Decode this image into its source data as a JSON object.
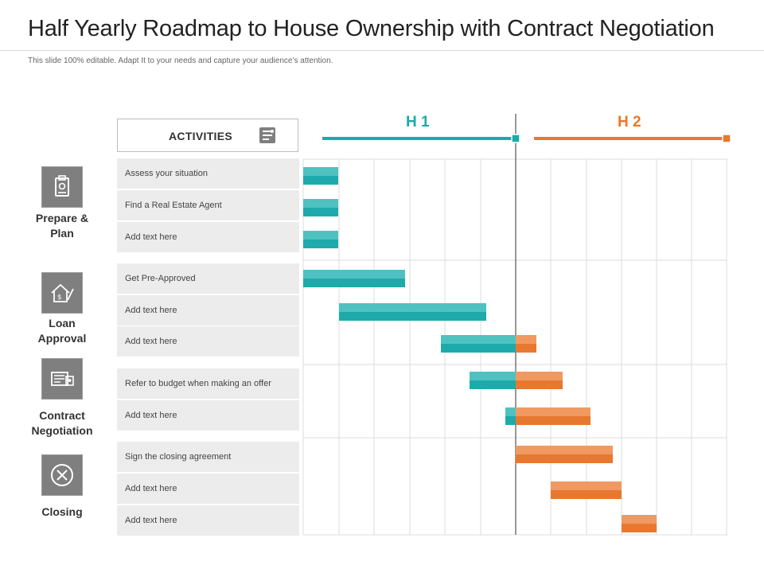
{
  "title": "Half Yearly Roadmap to House Ownership with Contract Negotiation",
  "subtitle": "This slide 100% editable. Adapt  It to your needs and capture your audience’s attention.",
  "activities_header": "ACTIVITIES",
  "halves": {
    "h1_label": "H 1",
    "h2_label": "H 2"
  },
  "colors": {
    "h1": "#1eaaaa",
    "h1_light": "#4fc1c1",
    "h2": "#e8782f",
    "h2_light": "#f09a62",
    "row_bg": "#ececec",
    "phase_box": "#7f7f7f"
  },
  "phases": [
    {
      "label_lines": [
        "Prepare &",
        "Plan"
      ],
      "icon": "clipboard-icon"
    },
    {
      "label_lines": [
        "Loan",
        "Approval"
      ],
      "icon": "house-money-icon"
    },
    {
      "label_lines": [
        "Contract",
        "Negotiation"
      ],
      "icon": "contract-document-icon"
    },
    {
      "label_lines": [
        "Closing"
      ],
      "icon": "close-circle-icon"
    }
  ],
  "activities": [
    "Assess your situation",
    "Find a Real Estate Agent",
    "Add text here",
    "Get Pre-Approved",
    "Add text here",
    "Add text here",
    "Refer to budget when making an offer",
    "Add text here",
    "Sign the closing agreement",
    "Add text here",
    "Add text here"
  ]
}
